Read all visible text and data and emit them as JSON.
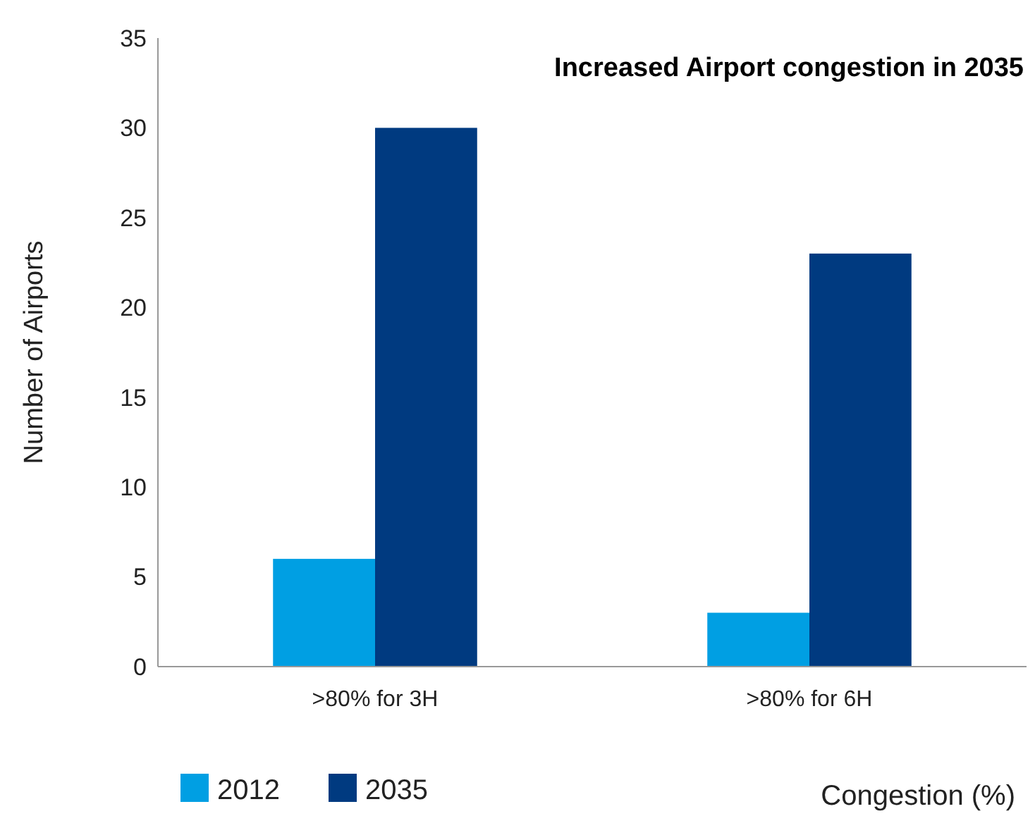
{
  "chart_data": {
    "type": "bar",
    "title": "Increased Airport congestion in 2035",
    "xlabel": "Congestion (%)",
    "ylabel": "Number of Airports",
    "categories": [
      ">80% for 3H",
      ">80% for 6H"
    ],
    "series": [
      {
        "name": "2012",
        "color": "#009fe3",
        "values": [
          6,
          3
        ]
      },
      {
        "name": "2035",
        "color": "#003a80",
        "values": [
          30,
          23
        ]
      }
    ],
    "ylim": [
      0,
      35
    ],
    "yticks": [
      0,
      5,
      10,
      15,
      20,
      25,
      30,
      35
    ],
    "grid": false,
    "legend": "bottom left"
  }
}
